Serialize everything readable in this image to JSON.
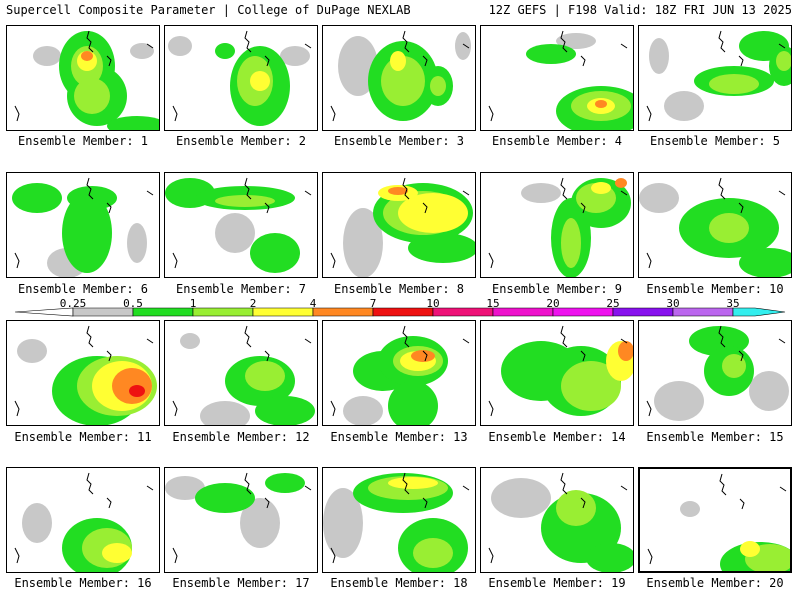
{
  "header": {
    "title": "Supercell Composite Parameter | College of DuPage NEXLAB",
    "run_info": "12Z GEFS | F198 Valid: 18Z FRI JUN 13 2025"
  },
  "legend": {
    "levels": [
      "0.25",
      "0.5",
      "1",
      "2",
      "4",
      "7",
      "10",
      "15",
      "20",
      "25",
      "30",
      "35"
    ],
    "colors": [
      "#ffffff",
      "#c8c8c8",
      "#22dd22",
      "#99ee33",
      "#ffff33",
      "#ff8822",
      "#ee1111",
      "#ee1177",
      "#ee11cc",
      "#ee11ee",
      "#8811ee",
      "#bb66ee",
      "#33eeee"
    ]
  },
  "members": [
    {
      "label": "Ensemble Member: 1"
    },
    {
      "label": "Ensemble Member: 2"
    },
    {
      "label": "Ensemble Member: 3"
    },
    {
      "label": "Ensemble Member: 4"
    },
    {
      "label": "Ensemble Member: 5"
    },
    {
      "label": "Ensemble Member: 6"
    },
    {
      "label": "Ensemble Member: 7"
    },
    {
      "label": "Ensemble Member: 8"
    },
    {
      "label": "Ensemble Member: 9"
    },
    {
      "label": "Ensemble Member: 10"
    },
    {
      "label": "Ensemble Member: 11"
    },
    {
      "label": "Ensemble Member: 12"
    },
    {
      "label": "Ensemble Member: 13"
    },
    {
      "label": "Ensemble Member: 14"
    },
    {
      "label": "Ensemble Member: 15"
    },
    {
      "label": "Ensemble Member: 16"
    },
    {
      "label": "Ensemble Member: 17"
    },
    {
      "label": "Ensemble Member: 18"
    },
    {
      "label": "Ensemble Member: 19"
    },
    {
      "label": "Ensemble Member: 20",
      "selected": true
    }
  ]
}
